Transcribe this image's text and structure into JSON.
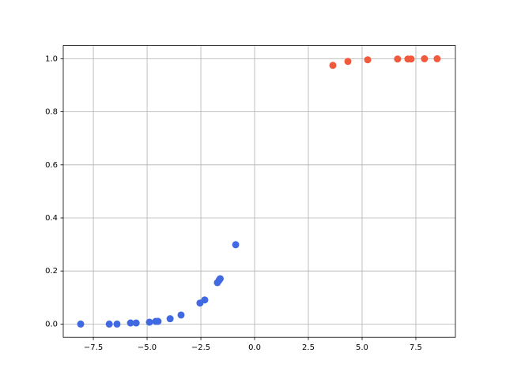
{
  "chart_data": {
    "type": "scatter",
    "series": [
      {
        "color": "#4169e1",
        "x": [
          -8.09,
          -6.76,
          -6.4,
          -5.77,
          -5.51,
          -4.89,
          -4.6,
          -4.49,
          -3.93,
          -3.42,
          -2.54,
          -2.32,
          -1.73,
          -1.65,
          -1.6,
          -0.88
        ],
        "values": [
          0.0,
          0.0,
          0.0,
          0.004,
          0.004,
          0.007,
          0.01,
          0.01,
          0.02,
          0.034,
          0.079,
          0.091,
          0.156,
          0.165,
          0.171,
          0.299
        ]
      },
      {
        "color": "#f15a3c",
        "x": [
          3.64,
          4.34,
          5.26,
          6.65,
          7.13,
          7.28,
          7.9,
          8.49
        ],
        "values": [
          0.975,
          0.99,
          0.996,
          0.999,
          0.999,
          0.999,
          1.0,
          1.0
        ]
      }
    ],
    "xlim": [
      -8.9,
      9.34
    ],
    "ylim": [
      -0.05,
      1.05
    ],
    "xticks": [
      {
        "value": -7.5,
        "label": "−7.5"
      },
      {
        "value": -5.0,
        "label": "−5.0"
      },
      {
        "value": -2.5,
        "label": "−2.5"
      },
      {
        "value": 0,
        "label": "0.0"
      },
      {
        "value": 2.5,
        "label": "2.5"
      },
      {
        "value": 5.0,
        "label": "5.0"
      },
      {
        "value": 7.5,
        "label": "7.5"
      }
    ],
    "yticks": [
      {
        "value": 0,
        "label": "0.0"
      },
      {
        "value": 0.2,
        "label": "0.2"
      },
      {
        "value": 0.4,
        "label": "0.4"
      },
      {
        "value": 0.6,
        "label": "0.6"
      },
      {
        "value": 0.8,
        "label": "0.8"
      },
      {
        "value": 1.0,
        "label": "1.0"
      }
    ],
    "grid": true
  }
}
